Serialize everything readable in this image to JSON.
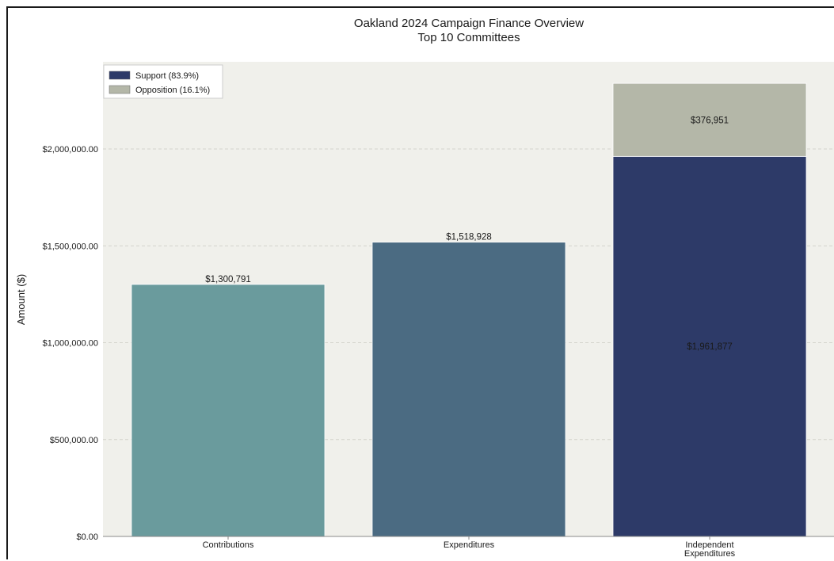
{
  "chart_data": {
    "type": "bar",
    "stacked_last_category": true,
    "title": "Oakland 2024 Campaign Finance Overview",
    "subtitle": "Top 10 Committees",
    "xlabel": "",
    "ylabel": "Amount ($)",
    "ylim": [
      0,
      2450000
    ],
    "yticks": [
      0,
      500000,
      1000000,
      1500000,
      2000000
    ],
    "ytick_labels": [
      "$0.00",
      "$500,000.00",
      "$1,000,000.00",
      "$1,500,000.00",
      "$2,000,000.00"
    ],
    "grid": true,
    "legend_position": "top-left",
    "categories": [
      {
        "label_lines": [
          "Contributions"
        ]
      },
      {
        "label_lines": [
          "Expenditures"
        ]
      },
      {
        "label_lines": [
          "Independent",
          "Expenditures"
        ]
      }
    ],
    "bars": [
      {
        "category": 0,
        "segments": [
          {
            "value": 1300791,
            "color": "#6a9b9d",
            "label": "$1,300,791",
            "label_position": "top"
          }
        ]
      },
      {
        "category": 1,
        "segments": [
          {
            "value": 1518928,
            "color": "#4b6b82",
            "label": "$1,518,928",
            "label_position": "top"
          }
        ]
      },
      {
        "category": 2,
        "segments": [
          {
            "value": 1961877,
            "color": "#2d3a68",
            "label": "$1,961,877",
            "label_position": "center",
            "series": "Support (83.9%)"
          },
          {
            "value": 376951,
            "color": "#b4b7a8",
            "label": "$376,951",
            "label_position": "center",
            "series": "Opposition (16.1%)"
          }
        ]
      }
    ],
    "legend": [
      {
        "name": "Support (83.9%)",
        "color": "#2d3a68"
      },
      {
        "name": "Opposition (16.1%)",
        "color": "#b4b7a8"
      }
    ],
    "colors": {
      "plot_background": "#f0f0eb",
      "grid": "#d4d4cc",
      "axis": "#8a8a8a"
    }
  }
}
